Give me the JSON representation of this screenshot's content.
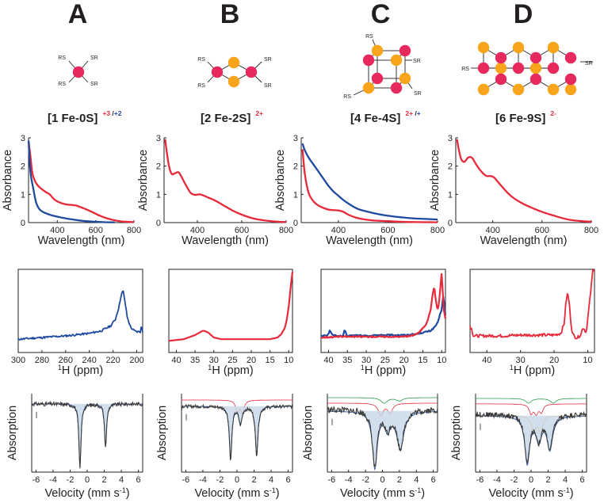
{
  "columns": [
    {
      "letter": "A",
      "cluster": "[1 Fe-0S]",
      "charges": [
        {
          "text": "+3",
          "color": "#e8293a"
        },
        {
          "text": " /",
          "color": "#231f20"
        },
        {
          "text": "+2",
          "color": "#1f4aa0"
        }
      ],
      "structure": "1fe",
      "ligand_labels": [
        "RS",
        "SR",
        "RS",
        "SR"
      ]
    },
    {
      "letter": "B",
      "cluster": "[2 Fe-2S]",
      "charges": [
        {
          "text": "2+",
          "color": "#e8293a"
        }
      ],
      "structure": "2fe",
      "ligand_labels": [
        "RS",
        "SR",
        "RS",
        "SR"
      ]
    },
    {
      "letter": "C",
      "cluster": "[4 Fe-4S]",
      "charges": [
        {
          "text": "2+",
          "color": "#e8293a"
        },
        {
          "text": " /",
          "color": "#231f20"
        },
        {
          "text": "+",
          "color": "#1f4aa0"
        }
      ],
      "structure": "4fe",
      "ligand_labels": [
        "RS",
        "SR",
        "RS",
        "SR"
      ]
    },
    {
      "letter": "D",
      "cluster": "[6 Fe-9S]",
      "charges": [
        {
          "text": "2-",
          "color": "#e8293a"
        }
      ],
      "structure": "6fe",
      "ligand_labels": [
        "RS",
        "SR"
      ]
    }
  ],
  "colors": {
    "fe": "#e8295d",
    "s": "#f9a51b",
    "red": "#e8293a",
    "blue": "#1f4aa0",
    "spectrum": "#3a3a3a",
    "fit_fill": "#c5d6e6"
  },
  "chart_data": [
    {
      "id": "uvvis-A",
      "type": "line",
      "xlabel": "Wavelength (nm)",
      "ylabel": "Absorbance",
      "xlim": [
        250,
        800
      ],
      "ylim": [
        0,
        3
      ],
      "xticks": [
        "400",
        "600",
        "800"
      ],
      "yticks": [
        "0",
        "1",
        "2",
        "3"
      ],
      "series": [
        {
          "name": "+3",
          "color": "#e8293a",
          "x": [
            250,
            260,
            270,
            285,
            300,
            320,
            340,
            360,
            380,
            400,
            440,
            480,
            500,
            540,
            580,
            620,
            660,
            700,
            740,
            800
          ],
          "y": [
            2.9,
            2.35,
            1.75,
            1.45,
            1.3,
            1.18,
            1.08,
            1.0,
            0.85,
            0.75,
            0.65,
            0.62,
            0.6,
            0.5,
            0.38,
            0.25,
            0.15,
            0.08,
            0.04,
            0.02
          ]
        },
        {
          "name": "+2",
          "color": "#1f4aa0",
          "x": [
            250,
            260,
            275,
            290,
            310,
            340,
            380,
            420,
            460,
            500,
            550,
            600,
            650,
            700
          ],
          "y": [
            2.9,
            1.8,
            1.2,
            0.7,
            0.45,
            0.33,
            0.24,
            0.18,
            0.13,
            0.09,
            0.05,
            0.03,
            0.015,
            0.01
          ]
        }
      ]
    },
    {
      "id": "uvvis-B",
      "type": "line",
      "xlabel": "Wavelength (nm)",
      "ylabel": "Absorbance",
      "xlim": [
        250,
        800
      ],
      "ylim": [
        0,
        3
      ],
      "xticks": [
        "400",
        "600",
        "800"
      ],
      "yticks": [
        "0",
        "1",
        "2",
        "3"
      ],
      "series": [
        {
          "name": "2+",
          "color": "#e8293a",
          "x": [
            255,
            262,
            272,
            285,
            300,
            315,
            330,
            350,
            370,
            390,
            410,
            430,
            450,
            480,
            520,
            560,
            600,
            650,
            700,
            750,
            800
          ],
          "y": [
            2.95,
            2.5,
            2.0,
            1.72,
            1.75,
            1.78,
            1.6,
            1.3,
            1.05,
            0.98,
            1.0,
            0.95,
            0.88,
            0.78,
            0.6,
            0.42,
            0.28,
            0.15,
            0.08,
            0.04,
            0.02
          ]
        }
      ]
    },
    {
      "id": "uvvis-C",
      "type": "line",
      "xlabel": "Wavelength (nm)",
      "ylabel": "Absorbance",
      "xlim": [
        250,
        800
      ],
      "ylim": [
        0,
        3
      ],
      "xticks": [
        "400",
        "600",
        "800"
      ],
      "yticks": [
        "0",
        "1",
        "2",
        "3"
      ],
      "series": [
        {
          "name": "+",
          "color": "#1f4aa0",
          "x": [
            255,
            265,
            280,
            300,
            320,
            340,
            360,
            380,
            400,
            420,
            450,
            480,
            520,
            560,
            600,
            650,
            700,
            750,
            800
          ],
          "y": [
            2.8,
            2.55,
            2.3,
            2.05,
            1.8,
            1.55,
            1.3,
            1.1,
            0.95,
            0.8,
            0.62,
            0.48,
            0.38,
            0.3,
            0.24,
            0.19,
            0.15,
            0.13,
            0.11
          ]
        },
        {
          "name": "2+",
          "color": "#e8293a",
          "x": [
            255,
            265,
            280,
            300,
            320,
            340,
            360,
            380,
            400,
            420,
            440,
            470,
            500,
            550,
            600,
            650,
            700,
            750,
            800
          ],
          "y": [
            2.6,
            1.7,
            1.05,
            0.75,
            0.6,
            0.52,
            0.46,
            0.44,
            0.43,
            0.38,
            0.28,
            0.18,
            0.12,
            0.07,
            0.05,
            0.03,
            0.02,
            0.015,
            0.01
          ]
        }
      ]
    },
    {
      "id": "uvvis-D",
      "type": "line",
      "xlabel": "Wavelength (nm)",
      "ylabel": "Absorbance",
      "xlim": [
        250,
        800
      ],
      "ylim": [
        0,
        3
      ],
      "xticks": [
        "400",
        "600",
        "800"
      ],
      "yticks": [
        "0",
        "1",
        "2",
        "3"
      ],
      "series": [
        {
          "name": "2-",
          "color": "#e8293a",
          "x": [
            255,
            262,
            272,
            285,
            300,
            315,
            330,
            345,
            360,
            375,
            390,
            405,
            420,
            450,
            480,
            520,
            560,
            600,
            650,
            700,
            750,
            800
          ],
          "y": [
            2.95,
            2.6,
            2.25,
            2.15,
            2.3,
            2.3,
            2.1,
            1.9,
            1.75,
            1.65,
            1.65,
            1.6,
            1.45,
            1.15,
            0.9,
            0.68,
            0.52,
            0.38,
            0.24,
            0.12,
            0.06,
            0.03
          ]
        }
      ]
    },
    {
      "id": "nmr-A",
      "type": "line",
      "xlabel": "1H (ppm)",
      "xlim": [
        300,
        195
      ],
      "ylim": [
        0,
        1
      ],
      "xticks": [
        "300",
        "280",
        "260",
        "240",
        "220",
        "200"
      ],
      "series": [
        {
          "name": "+2",
          "color": "#1f4aa0",
          "noise": 0.012,
          "x": [
            300,
            280,
            260,
            240,
            230,
            222,
            218,
            215,
            213,
            211.5,
            210,
            208,
            205,
            202,
            200,
            198,
            196.5,
            196,
            195.5,
            195
          ],
          "y": [
            0.16,
            0.18,
            0.2,
            0.23,
            0.26,
            0.32,
            0.4,
            0.55,
            0.7,
            0.74,
            0.62,
            0.42,
            0.3,
            0.26,
            0.25,
            0.25,
            0.25,
            0.38,
            0.26,
            0.25
          ]
        }
      ]
    },
    {
      "id": "nmr-B",
      "type": "line",
      "xlabel": "1H (ppm)",
      "xlim": [
        42,
        9
      ],
      "ylim": [
        0,
        1
      ],
      "xticks": [
        "40",
        "35",
        "30",
        "25",
        "20",
        "15",
        "10"
      ],
      "series": [
        {
          "name": "2+",
          "color": "#e8293a",
          "noise": 0.0,
          "x": [
            42,
            38,
            35,
            33,
            32.5,
            31.5,
            30,
            28,
            25,
            20,
            15,
            13,
            12,
            11,
            10.5,
            10,
            9.5,
            9
          ],
          "y": [
            0.14,
            0.16,
            0.21,
            0.26,
            0.26,
            0.24,
            0.18,
            0.16,
            0.16,
            0.16,
            0.16,
            0.18,
            0.22,
            0.3,
            0.4,
            0.55,
            0.78,
            0.97
          ]
        }
      ]
    },
    {
      "id": "nmr-C",
      "type": "line",
      "xlabel": "1H (ppm)",
      "xlim": [
        42,
        9
      ],
      "ylim": [
        0,
        1
      ],
      "xticks": [
        "40",
        "35",
        "30",
        "25",
        "20",
        "15",
        "10"
      ],
      "series": [
        {
          "name": "+",
          "color": "#1f4aa0",
          "noise": 0.008,
          "x": [
            42,
            40.2,
            39.6,
            39,
            38,
            36.2,
            35.7,
            35.2,
            34,
            30,
            25,
            20,
            17,
            15,
            13,
            12,
            11,
            10.5,
            10,
            9.6,
            9.3,
            9
          ],
          "y": [
            0.2,
            0.21,
            0.27,
            0.21,
            0.2,
            0.2,
            0.28,
            0.2,
            0.21,
            0.2,
            0.21,
            0.21,
            0.22,
            0.24,
            0.26,
            0.3,
            0.36,
            0.45,
            0.52,
            0.68,
            0.58,
            0.45
          ]
        },
        {
          "name": "2+",
          "color": "#e8293a",
          "noise": 0.008,
          "x": [
            42,
            38,
            35,
            30,
            25,
            20,
            18,
            16,
            14,
            13,
            12.5,
            12,
            11.6,
            11.2,
            10.8,
            10.5,
            10.2,
            10,
            9.7,
            9.4,
            9.2,
            9
          ],
          "y": [
            0.18,
            0.19,
            0.19,
            0.19,
            0.19,
            0.19,
            0.2,
            0.24,
            0.35,
            0.5,
            0.66,
            0.8,
            0.65,
            0.52,
            0.56,
            0.7,
            0.86,
            0.96,
            0.7,
            0.5,
            0.45,
            0.4
          ]
        }
      ]
    },
    {
      "id": "nmr-D",
      "type": "line",
      "xlabel": "1H (ppm)",
      "xlim": [
        45,
        8
      ],
      "ylim": [
        0,
        1
      ],
      "xticks": [
        "40",
        "30",
        "20",
        "10"
      ],
      "series": [
        {
          "name": "2-",
          "color": "#e8293a",
          "noise": 0.018,
          "x": [
            45,
            44.5,
            44,
            40,
            35,
            30,
            25,
            20,
            18,
            17,
            16.5,
            16,
            15.5,
            15,
            14.5,
            13.5,
            13,
            12,
            11.5,
            11,
            10.5,
            10,
            9,
            8.5
          ],
          "y": [
            0.32,
            0.28,
            0.2,
            0.2,
            0.2,
            0.21,
            0.21,
            0.21,
            0.23,
            0.35,
            0.6,
            0.72,
            0.6,
            0.35,
            0.22,
            0.18,
            0.18,
            0.22,
            0.3,
            0.28,
            0.24,
            0.4,
            0.78,
            1.0
          ]
        }
      ]
    },
    {
      "id": "moss-A",
      "type": "line",
      "xlabel": "Velocity (mm s-1)",
      "ylabel": "Absorption",
      "xlim": [
        -6.5,
        6.5
      ],
      "ylim": [
        0,
        1
      ],
      "noise_amp": 0.025,
      "xticks": [
        "-6",
        "-4",
        "-2",
        "0",
        "2",
        "4",
        "6"
      ],
      "baseline": 0.87,
      "data_above_fit": 0,
      "components": [
        {
          "color": "#1f4aa0",
          "filled": true,
          "base": 0.87,
          "lines": [
            [
              -0.85,
              0.82,
              0.3
            ],
            [
              2.15,
              0.55,
              0.3
            ]
          ]
        }
      ]
    },
    {
      "id": "moss-B",
      "type": "line",
      "xlabel": "Velocity (mm s-1)",
      "ylabel": "Absorption",
      "xlim": [
        -6.5,
        6.5
      ],
      "ylim": [
        0,
        1
      ],
      "noise_amp": 0.02,
      "xticks": [
        "-6",
        "-4",
        "-2",
        "0",
        "2",
        "4",
        "6"
      ],
      "baseline": 0.84,
      "data_above_fit": 0,
      "components": [
        {
          "color": "#e8293a",
          "filled": false,
          "base": 0.92,
          "lines": [
            [
              0.05,
              0.16,
              0.45
            ],
            [
              0.65,
              0.16,
              0.45
            ]
          ]
        },
        {
          "color": "#1f4aa0",
          "filled": true,
          "base": 0.84,
          "lines": [
            [
              -0.75,
              0.68,
              0.35
            ],
            [
              2.3,
              0.62,
              0.38
            ],
            [
              0.4,
              0.22,
              0.45
            ]
          ]
        }
      ]
    },
    {
      "id": "moss-C",
      "type": "line",
      "xlabel": "Velocity (mm s-1)",
      "ylabel": "Absorption",
      "xlim": [
        -6.5,
        6.5
      ],
      "ylim": [
        0,
        1
      ],
      "noise_amp": 0.04,
      "xticks": [
        "-6",
        "-4",
        "-2",
        "0",
        "2",
        "4",
        "6"
      ],
      "baseline": 0.78,
      "data_above_fit": 0.02,
      "components": [
        {
          "color": "#2a9a48",
          "filled": false,
          "base": 0.95,
          "lines": [
            [
              0.2,
              0.07,
              0.9
            ],
            [
              2.0,
              0.04,
              0.9
            ]
          ]
        },
        {
          "color": "#e8293a",
          "filled": false,
          "base": 0.88,
          "lines": [
            [
              -0.2,
              0.15,
              0.7
            ],
            [
              0.9,
              0.12,
              0.7
            ]
          ]
        },
        {
          "color": "#1f4aa0",
          "filled": true,
          "base": 0.78,
          "lines": [
            [
              -0.9,
              0.72,
              0.7
            ],
            [
              2.1,
              0.48,
              1.0
            ],
            [
              0.6,
              0.22,
              0.8
            ]
          ]
        }
      ]
    },
    {
      "id": "moss-D",
      "type": "line",
      "xlabel": "Velocity (mm s-1)",
      "ylabel": "Absorption",
      "xlim": [
        -6.5,
        6.5
      ],
      "ylim": [
        0,
        1
      ],
      "noise_amp": 0.035,
      "xticks": [
        "-6",
        "-4",
        "-2",
        "0",
        "2",
        "4",
        "6"
      ],
      "baseline": 0.72,
      "data_above_fit": 0.02,
      "components": [
        {
          "color": "#2a9a48",
          "filled": false,
          "base": 0.94,
          "lines": [
            [
              -0.3,
              0.06,
              0.8
            ],
            [
              2.6,
              0.06,
              0.8
            ]
          ]
        },
        {
          "color": "#e8293a",
          "filled": false,
          "base": 0.87,
          "lines": [
            [
              0.0,
              0.12,
              0.5
            ],
            [
              0.6,
              0.12,
              0.5
            ],
            [
              1.2,
              0.1,
              0.5
            ]
          ]
        },
        {
          "color": "#f9a51b",
          "filled": false,
          "base": 0.72,
          "lines": [
            [
              0.3,
              0.2,
              0.6
            ],
            [
              1.1,
              0.2,
              0.6
            ]
          ]
        },
        {
          "color": "#1f4aa0",
          "filled": true,
          "base": 0.72,
          "lines": [
            [
              -0.45,
              0.6,
              0.7
            ],
            [
              2.2,
              0.42,
              0.8
            ],
            [
              0.9,
              0.3,
              0.8
            ]
          ]
        }
      ]
    }
  ]
}
